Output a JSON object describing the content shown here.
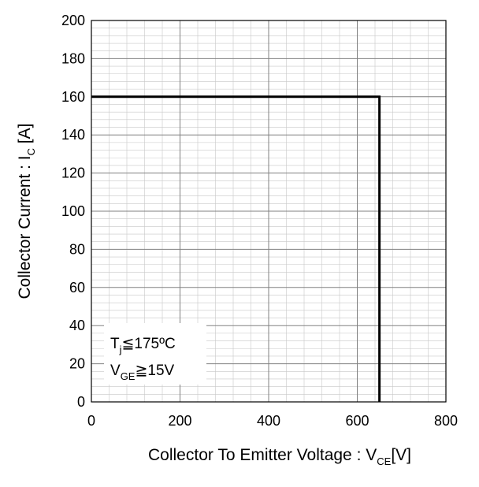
{
  "chart_data": {
    "type": "line",
    "xlabel": {
      "main": "Collector To Emitter Voltage : V",
      "sub": "CE",
      "unit": "[V]"
    },
    "ylabel": {
      "main": "Collector Current : I",
      "sub": "C",
      "unit": " [A]"
    },
    "xlim": [
      0,
      800
    ],
    "ylim": [
      0,
      200
    ],
    "x_ticks": [
      0,
      200,
      400,
      600,
      800
    ],
    "y_ticks": [
      0,
      20,
      40,
      60,
      80,
      100,
      120,
      140,
      160,
      180,
      200
    ],
    "x_major_step": 200,
    "x_minor_step": 40,
    "y_major_step": 20,
    "y_minor_step": 4,
    "grid": true,
    "series": [
      {
        "x": [
          0,
          650,
          650
        ],
        "y": [
          160,
          160,
          0
        ],
        "color": "#000000"
      }
    ],
    "annotation": {
      "line1": {
        "main": "T",
        "sub": "j",
        "rest": "≦175ºC"
      },
      "line2": {
        "main": "V",
        "sub": "GE",
        "rest": "≧15V"
      }
    }
  }
}
